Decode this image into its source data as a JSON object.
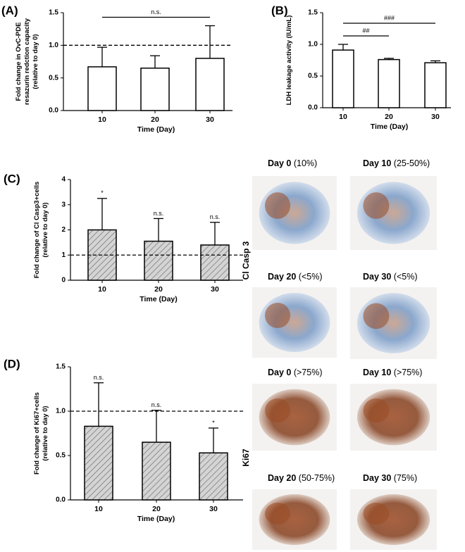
{
  "chart_data": [
    {
      "type": "bar",
      "label": "(A)",
      "ylabel": [
        "Fold change in OvC-PDE",
        "resazurin redction capacity",
        "(relative to day 0)"
      ],
      "xlabel": "Time (Day)",
      "categories": [
        "10",
        "20",
        "30"
      ],
      "values": [
        0.67,
        0.65,
        0.8
      ],
      "errors": [
        0.3,
        0.19,
        0.5
      ],
      "color": "#ffffff",
      "hatch": false,
      "ylim": [
        0,
        1.5
      ],
      "yticks": [
        {
          "value": 0,
          "label": "0.0"
        },
        {
          "value": 0.5,
          "label": "0.5"
        },
        {
          "value": 1,
          "label": "1.0"
        },
        {
          "value": 1.5,
          "label": "1.5"
        }
      ],
      "reference_line": 1,
      "brackets": [
        {
          "text": "n.s.",
          "between": [
            "10",
            "30"
          ]
        }
      ]
    },
    {
      "type": "bar",
      "label": "(B)",
      "ylabel": [
        "LDH leakage activity (IU/mL)"
      ],
      "xlabel": "Time (Day)",
      "categories": [
        "10",
        "20",
        "30"
      ],
      "values": [
        0.91,
        0.76,
        0.71
      ],
      "errors": [
        0.09,
        0.02,
        0.03
      ],
      "color": "#ffffff",
      "hatch": false,
      "ylim": [
        0,
        1.5
      ],
      "yticks": [
        {
          "value": 0,
          "label": "0.0"
        },
        {
          "value": 0.5,
          "label": "0.5"
        },
        {
          "value": 1,
          "label": "1.0"
        },
        {
          "value": 1.5,
          "label": "1.5"
        }
      ],
      "brackets": [
        {
          "text": "##",
          "between": [
            "10",
            "20"
          ]
        },
        {
          "text": "###",
          "between": [
            "10",
            "30"
          ]
        }
      ]
    },
    {
      "type": "bar",
      "label": "(C)",
      "ylabel": [
        "Fold change of Cl Casp3+cells",
        "(relative to day 0)"
      ],
      "xlabel": "Time (Day)",
      "categories": [
        "10",
        "20",
        "30"
      ],
      "values": [
        2.0,
        1.55,
        1.4
      ],
      "errors": [
        1.25,
        0.9,
        0.9
      ],
      "color": "#c8c8c8",
      "hatch": true,
      "ylim": [
        0,
        4
      ],
      "yticks": [
        0,
        1,
        2,
        3,
        4
      ],
      "reference_line": 1,
      "bar_labels": [
        "*",
        "n.s.",
        "n.s."
      ]
    },
    {
      "type": "bar",
      "label": "(D)",
      "ylabel": [
        "Fold change of Ki67+cells",
        "(relative to day 0)"
      ],
      "xlabel": "Time (Day)",
      "categories": [
        "10",
        "20",
        "30"
      ],
      "values": [
        0.83,
        0.65,
        0.53
      ],
      "errors": [
        0.49,
        0.36,
        0.28
      ],
      "color": "#c8c8c8",
      "hatch": true,
      "ylim": [
        0,
        1.5
      ],
      "yticks": [
        {
          "value": 0,
          "label": "0.0"
        },
        {
          "value": 0.5,
          "label": "0.5"
        },
        {
          "value": 1,
          "label": "1.0"
        },
        {
          "value": 1.5,
          "label": "1.5"
        }
      ],
      "reference_line": 1,
      "bar_labels": [
        "n.s.",
        "n.s.",
        "*"
      ]
    }
  ],
  "micrographs": [
    {
      "stain": "Cl Casp 3",
      "panels": [
        {
          "day": "Day 0",
          "pct": "(10%)"
        },
        {
          "day": "Day 10",
          "pct": "(25-50%)"
        },
        {
          "day": "Day 20",
          "pct": "(<5%)"
        },
        {
          "day": "Day 30",
          "pct": "(<5%)"
        }
      ]
    },
    {
      "stain": "Ki67",
      "panels": [
        {
          "day": "Day 0",
          "pct": "(>75%)"
        },
        {
          "day": "Day 10",
          "pct": "(>75%)"
        },
        {
          "day": "Day 20",
          "pct": "(50-75%)"
        },
        {
          "day": "Day 30",
          "pct": "(75%)"
        }
      ]
    }
  ]
}
